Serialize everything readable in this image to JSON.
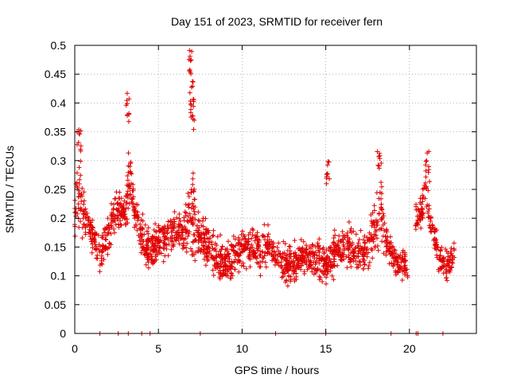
{
  "chart_data": {
    "type": "scatter",
    "title": "Day 151 of 2023, SRMTID for receiver fern",
    "xlabel": "GPS time / hours",
    "ylabel": "SRMTID / TECUs",
    "xlim": [
      0,
      24
    ],
    "ylim": [
      0,
      0.5
    ],
    "x_ticks": [
      0,
      5,
      10,
      15,
      20
    ],
    "x_tick_labels": [
      "0",
      "5",
      "10",
      "15",
      "20"
    ],
    "y_ticks": [
      0,
      0.05,
      0.1,
      0.15,
      0.2,
      0.25,
      0.3,
      0.35,
      0.4,
      0.45,
      0.5
    ],
    "y_tick_labels": [
      "0",
      "0.05",
      "0.1",
      "0.15",
      "0.2",
      "0.25",
      "0.3",
      "0.35",
      "0.4",
      "0.45",
      "0.5"
    ],
    "grid": true,
    "marker": "+",
    "series_color": "#e00000",
    "zero_points_x": [
      1.5,
      2.6,
      3.2,
      4.0,
      4.5,
      7.5,
      12.0,
      15.0,
      18.9,
      20.4,
      20.5,
      22.0
    ],
    "envelope": {
      "x": [
        0.0,
        0.2,
        0.5,
        1.0,
        1.5,
        2.0,
        2.5,
        3.0,
        3.3,
        3.6,
        4.0,
        4.5,
        5.0,
        5.5,
        6.0,
        6.5,
        7.0,
        7.4,
        8.0,
        8.5,
        9.0,
        9.5,
        10.0,
        10.5,
        11.0,
        11.5,
        12.0,
        12.5,
        13.0,
        13.5,
        14.0,
        14.5,
        15.0,
        15.5,
        16.0,
        16.5,
        17.0,
        17.5,
        18.0,
        18.3,
        18.6,
        19.0,
        19.5,
        20.0,
        20.4,
        20.7,
        21.0,
        21.3,
        21.6,
        22.0,
        22.4,
        22.7
      ],
      "center": [
        0.2,
        0.26,
        0.21,
        0.17,
        0.14,
        0.17,
        0.22,
        0.2,
        0.28,
        0.21,
        0.17,
        0.14,
        0.16,
        0.17,
        0.18,
        0.17,
        0.21,
        0.17,
        0.15,
        0.13,
        0.12,
        0.13,
        0.15,
        0.15,
        0.14,
        0.15,
        0.14,
        0.12,
        0.12,
        0.13,
        0.13,
        0.13,
        0.12,
        0.14,
        0.15,
        0.15,
        0.14,
        0.15,
        0.2,
        0.21,
        0.16,
        0.13,
        0.12,
        0.12,
        0.2,
        0.21,
        0.24,
        0.2,
        0.15,
        0.12,
        0.12,
        0.14
      ],
      "spread": [
        0.05,
        0.1,
        0.05,
        0.04,
        0.04,
        0.05,
        0.05,
        0.05,
        0.1,
        0.05,
        0.05,
        0.05,
        0.05,
        0.05,
        0.05,
        0.05,
        0.12,
        0.05,
        0.05,
        0.05,
        0.05,
        0.05,
        0.05,
        0.05,
        0.05,
        0.05,
        0.05,
        0.05,
        0.05,
        0.04,
        0.04,
        0.05,
        0.04,
        0.05,
        0.05,
        0.05,
        0.05,
        0.05,
        0.08,
        0.09,
        0.05,
        0.04,
        0.04,
        0.04,
        0.04,
        0.04,
        0.07,
        0.05,
        0.04,
        0.04,
        0.04,
        0.03
      ]
    },
    "peaks": [
      {
        "x": 0.25,
        "y": 0.36
      },
      {
        "x": 3.15,
        "y": 0.42
      },
      {
        "x": 6.95,
        "y": 0.5
      },
      {
        "x": 7.0,
        "y": 0.45
      },
      {
        "x": 7.05,
        "y": 0.41
      },
      {
        "x": 15.15,
        "y": 0.31
      },
      {
        "x": 18.2,
        "y": 0.32
      },
      {
        "x": 21.1,
        "y": 0.32
      }
    ]
  }
}
